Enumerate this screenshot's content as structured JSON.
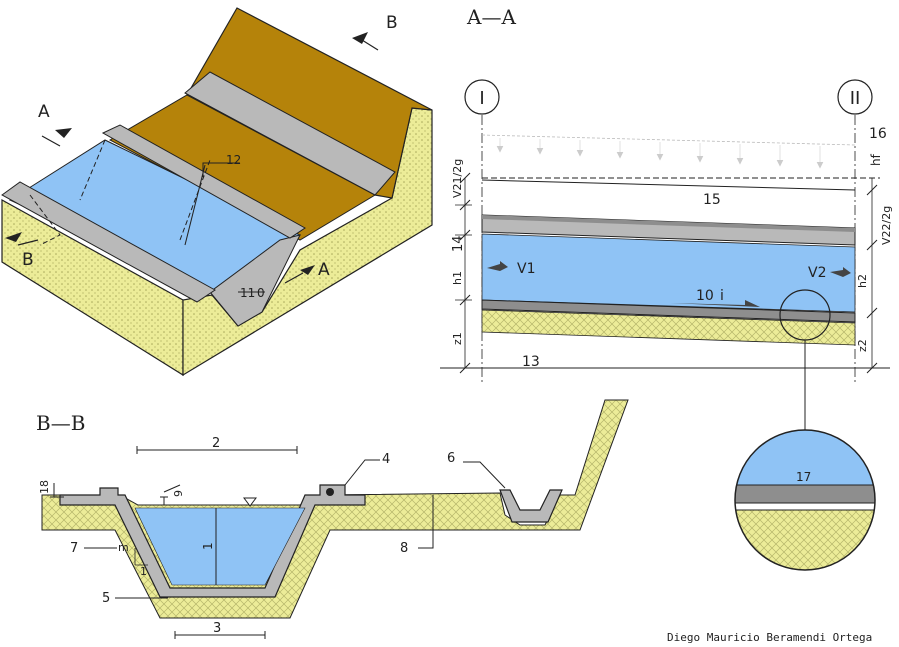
{
  "colors": {
    "water": "#8fc3f5",
    "soil": "#ecec98",
    "soil_hatch": "#b5b56a",
    "ground_brown": "#b5830a",
    "concrete": "#b9b9b9",
    "concrete_dark": "#8e8e8e",
    "line": "#222222"
  },
  "section_labels": {
    "aa": "A—A",
    "bb": "B—B",
    "a": "A",
    "b": "B"
  },
  "aa_section": {
    "station_1": "I",
    "station_2": "II",
    "label_16": "16",
    "label_hf": "hf",
    "label_15": "15",
    "label_14": "14",
    "label_13": "13",
    "label_10": "10",
    "label_i": "i",
    "v21_2g": "V21/2g",
    "v22_2g": "V22/2g",
    "h1": "h1",
    "h2": "h2",
    "z1": "z1",
    "z2": "z2",
    "v1": "V1",
    "v2": "V2"
  },
  "iso_labels": {
    "label_12": "12",
    "label_11": "11",
    "label_0": "0"
  },
  "bb_section": {
    "label_2": "2",
    "label_3": "3",
    "label_4": "4",
    "label_5": "5",
    "label_6": "6",
    "label_7": "7",
    "label_8": "8",
    "label_9": "9",
    "label_18": "18",
    "label_1_depth": "1",
    "label_1_slope": "1",
    "label_m": "m"
  },
  "detail": {
    "label_17": "17"
  },
  "author": "Diego Mauricio Beramendi Ortega"
}
